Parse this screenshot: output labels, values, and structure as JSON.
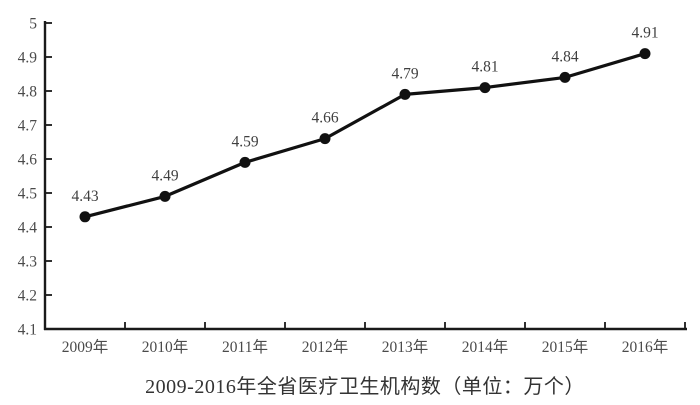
{
  "chart_data": {
    "type": "line",
    "title": "2009-2016年全省医疗卫生机构数（单位：万个）",
    "categories": [
      "2009年",
      "2010年",
      "2011年",
      "2012年",
      "2013年",
      "2014年",
      "2015年",
      "2016年"
    ],
    "values": [
      4.43,
      4.49,
      4.59,
      4.66,
      4.79,
      4.81,
      4.84,
      4.91
    ],
    "data_labels": [
      "4.43",
      "4.49",
      "4.59",
      "4.66",
      "4.79",
      "4.81",
      "4.84",
      "4.91"
    ],
    "xlabel": "",
    "ylabel": "",
    "ylim": [
      4.1,
      5.0
    ],
    "ytick_step": 0.1,
    "ytick_labels": [
      "4.1",
      "4.2",
      "4.3",
      "4.4",
      "4.5",
      "4.6",
      "4.7",
      "4.8",
      "4.9",
      "5"
    ],
    "grid": false,
    "legend_position": "none",
    "colors": {
      "line": "#111111",
      "marker": "#111111",
      "axis": "#1a1a1a",
      "tick_label": "#4a4a4a",
      "data_label": "#3f3f3f",
      "title": "#333333",
      "background": "#ffffff"
    }
  }
}
